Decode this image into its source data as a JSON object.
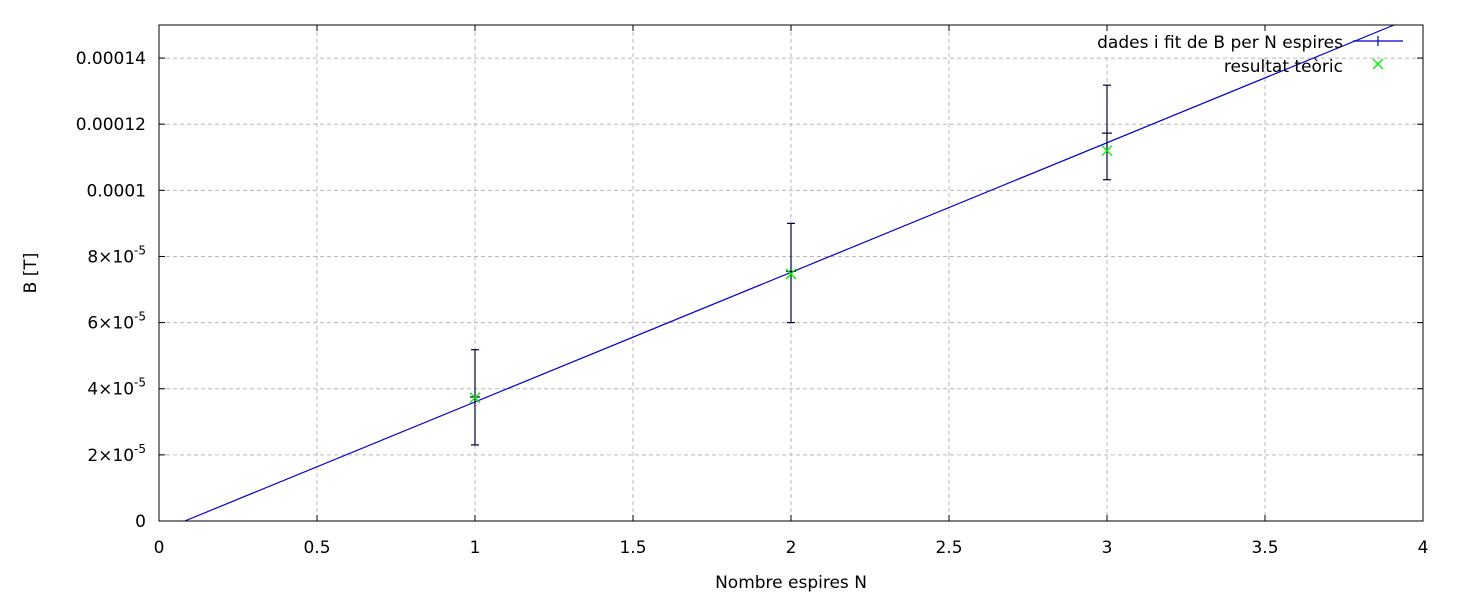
{
  "chart_data": {
    "type": "scatter",
    "title": "",
    "xlabel": "Nombre espires N",
    "ylabel": "B [T]",
    "xlim": [
      0,
      4
    ],
    "ylim": [
      0,
      0.00015
    ],
    "grid": true,
    "legend_position": "top-right",
    "x_ticks": [
      {
        "value": 0,
        "label": "0"
      },
      {
        "value": 0.5,
        "label": "0.5"
      },
      {
        "value": 1,
        "label": "1"
      },
      {
        "value": 1.5,
        "label": "1.5"
      },
      {
        "value": 2,
        "label": "2"
      },
      {
        "value": 2.5,
        "label": "2.5"
      },
      {
        "value": 3,
        "label": "3"
      },
      {
        "value": 3.5,
        "label": "3.5"
      },
      {
        "value": 4,
        "label": "4"
      }
    ],
    "y_ticks": [
      {
        "value": 0,
        "label": "0"
      },
      {
        "value": 2e-05,
        "mantissa": "2×10",
        "exponent": "-5"
      },
      {
        "value": 4e-05,
        "mantissa": "4×10",
        "exponent": "-5"
      },
      {
        "value": 6e-05,
        "mantissa": "6×10",
        "exponent": "-5"
      },
      {
        "value": 8e-05,
        "mantissa": "8×10",
        "exponent": "-5"
      },
      {
        "value": 0.0001,
        "label": "0.0001"
      },
      {
        "value": 0.00012,
        "label": "0.00012"
      },
      {
        "value": 0.00014,
        "label": "0.00014"
      }
    ],
    "series": [
      {
        "name": "dades i fit de B per N espires",
        "type": "errorbars_with_fit",
        "color": "#0000cc",
        "points": [
          {
            "x": 1,
            "y": 3.75e-05,
            "ylow": 2.3e-05,
            "yhigh": 5.18e-05
          },
          {
            "x": 2,
            "y": 7.55e-05,
            "ylow": 6e-05,
            "yhigh": 9e-05
          },
          {
            "x": 3,
            "y": 0.0001173,
            "ylow": 0.0001032,
            "yhigh": 0.0001318
          }
        ],
        "fit": {
          "slope": 3.92e-05,
          "intercept": -3.2e-06
        }
      },
      {
        "name": "resultat teòric",
        "type": "points",
        "marker": "x",
        "color": "#00ee00",
        "points": [
          {
            "x": 1,
            "y": 3.73e-05
          },
          {
            "x": 2,
            "y": 7.47e-05
          },
          {
            "x": 3,
            "y": 0.000112
          }
        ]
      }
    ]
  }
}
